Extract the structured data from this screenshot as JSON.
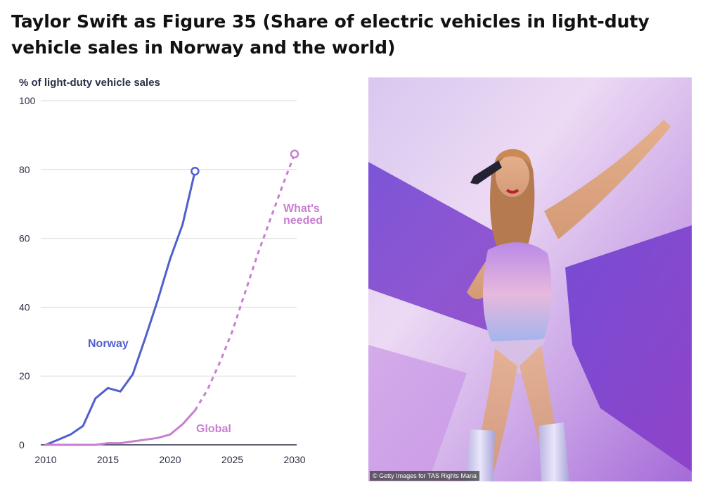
{
  "title": "Taylor Swift as Figure 35 (Share of electric vehicles in light-duty vehicle sales in Norway and the world)",
  "photo": {
    "credit": "© Getty Images for TAS Rights Mana"
  },
  "chart_data": {
    "type": "line",
    "ylabel": "% of light-duty vehicle sales",
    "xlabel": "",
    "xlim": [
      2010,
      2030
    ],
    "ylim": [
      0,
      100
    ],
    "x_ticks": [
      2010,
      2015,
      2020,
      2025,
      2030
    ],
    "y_ticks": [
      0,
      20,
      40,
      60,
      80,
      100
    ],
    "grid": true,
    "series": [
      {
        "name": "Norway",
        "style": "solid",
        "color": "#4f5fcf",
        "end_marker": "open-circle",
        "x": [
          2010,
          2011,
          2012,
          2013,
          2014,
          2015,
          2016,
          2017,
          2018,
          2019,
          2020,
          2021,
          2022
        ],
        "y": [
          0,
          1.5,
          3,
          5.5,
          13.5,
          16.5,
          15.5,
          20.5,
          31,
          42,
          54,
          64,
          79.5
        ]
      },
      {
        "name": "Global",
        "style": "solid",
        "color": "#c77fd0",
        "x": [
          2010,
          2011,
          2012,
          2013,
          2014,
          2015,
          2016,
          2017,
          2018,
          2019,
          2020,
          2021,
          2022
        ],
        "y": [
          0,
          0,
          0,
          0,
          0,
          0.5,
          0.5,
          1,
          1.5,
          2,
          3,
          6,
          10
        ]
      },
      {
        "name": "What's needed",
        "style": "dashed",
        "color": "#c77fd0",
        "end_marker": "open-circle",
        "x": [
          2022,
          2023,
          2024,
          2025,
          2026,
          2027,
          2028,
          2029,
          2030
        ],
        "y": [
          10,
          16,
          24,
          33,
          44,
          55,
          65,
          75,
          84.5
        ]
      }
    ],
    "labels": [
      {
        "text": "Norway",
        "color": "#4f5fcf"
      },
      {
        "text": "Global",
        "color": "#c77fd0"
      },
      {
        "text": "What's",
        "color": "#c77fd0"
      },
      {
        "text": "needed",
        "color": "#c77fd0"
      }
    ],
    "colors": {
      "axis": "#2b2f45",
      "grid": "#d9d9d9"
    }
  }
}
